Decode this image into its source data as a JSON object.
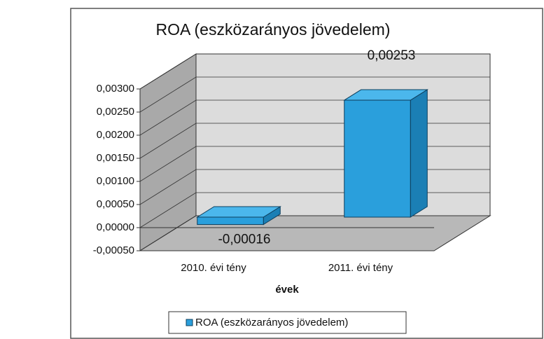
{
  "chart_data": {
    "type": "bar3d",
    "title": "ROA (eszközarányos jövedelem)",
    "categories": [
      "2010. évi tény",
      "2011. évi tény"
    ],
    "series": [
      {
        "name": "ROA (eszközarányos jövedelem)",
        "color": "#2a9fdc",
        "values": [
          -0.00016,
          0.00253
        ],
        "value_labels": [
          "-0,00016",
          "0,00253"
        ]
      }
    ],
    "xlabel": "évek",
    "ylim": [
      -0.0005,
      0.003
    ],
    "yticks": [
      {
        "value": -0.0005,
        "label": "-0,00050"
      },
      {
        "value": 0,
        "label": "0,00000"
      },
      {
        "value": 0.0005,
        "label": "0,00050"
      },
      {
        "value": 0.001,
        "label": "0,00100"
      },
      {
        "value": 0.0015,
        "label": "0,00150"
      },
      {
        "value": 0.002,
        "label": "0,00200"
      },
      {
        "value": 0.0025,
        "label": "0,00250"
      },
      {
        "value": 0.003,
        "label": "0,00300"
      }
    ],
    "grid": true,
    "legend": "bottom"
  }
}
